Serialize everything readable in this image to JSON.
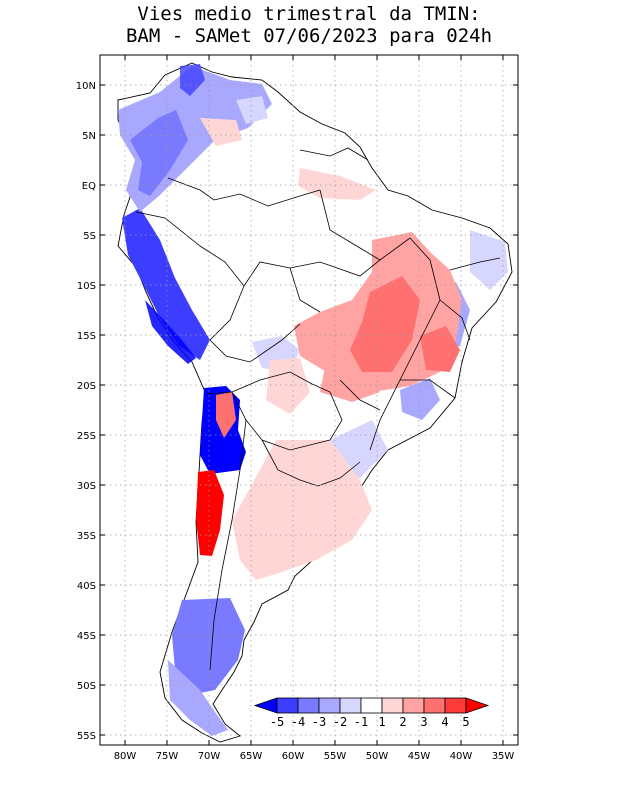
{
  "title": {
    "line1": "Vies medio trimestral da TMIN:",
    "line2": "BAM - SAMet 07/06/2023  para 024h"
  },
  "axes": {
    "lat_labels": [
      "10N",
      "5N",
      "EQ",
      "5S",
      "10S",
      "15S",
      "20S",
      "25S",
      "30S",
      "35S",
      "40S",
      "45S",
      "50S",
      "55S"
    ],
    "lat_values": [
      10,
      5,
      0,
      -5,
      -10,
      -15,
      -20,
      -25,
      -30,
      -35,
      -40,
      -45,
      -50,
      -55
    ],
    "lon_labels": [
      "80W",
      "75W",
      "70W",
      "65W",
      "60W",
      "55W",
      "50W",
      "45W",
      "40W",
      "35W"
    ],
    "lon_values": [
      -80,
      -75,
      -70,
      -65,
      -60,
      -55,
      -50,
      -45,
      -40,
      -35
    ],
    "lat_range": [
      -55.5,
      11.5
    ],
    "lon_range": [
      -83,
      -34
    ]
  },
  "colorbar": {
    "labels": [
      "-5",
      "-4",
      "-3",
      "-2",
      "-1",
      "1",
      "2",
      "3",
      "4",
      "5"
    ],
    "colors": [
      "#0000ff",
      "#3d3dff",
      "#7a7aff",
      "#a8a8ff",
      "#d6d6ff",
      "#ffffff",
      "#ffd6d6",
      "#ffa3a3",
      "#ff7070",
      "#ff3a3a",
      "#ff0000"
    ]
  },
  "colors": {
    "land_outline": "#000000",
    "grid": "#9a9a9a"
  }
}
